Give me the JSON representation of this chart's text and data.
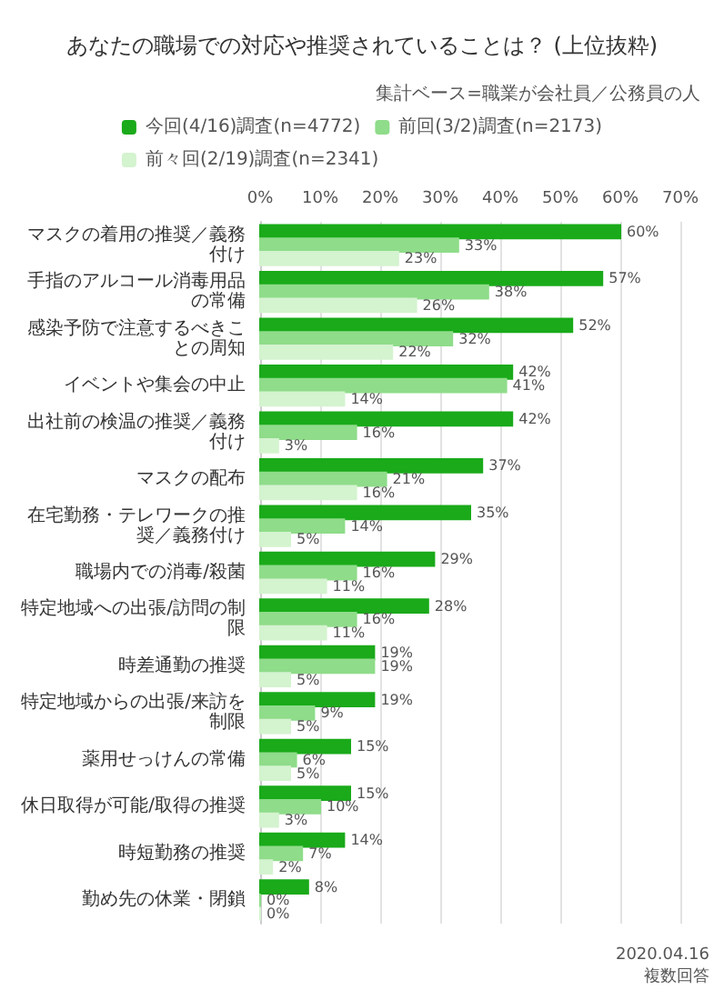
{
  "chart_data": {
    "type": "bar",
    "orientation": "horizontal",
    "title": "あなたの職場での対応や推奨されていることは？ (上位抜粋)",
    "subtitle": "集計ベース=職業が会社員／公務員の人",
    "categories": [
      "マスクの着用の推奨／義務付け",
      "手指のアルコール消毒用品の常備",
      "感染予防で注意するべきことの周知",
      "イベントや集会の中止",
      "出社前の検温の推奨／義務付け",
      "マスクの配布",
      "在宅勤務・テレワークの推奨／義務付け",
      "職場内での消毒/殺菌",
      "特定地域への出張/訪問の制限",
      "時差通勤の推奨",
      "特定地域からの出張/来訪を制限",
      "薬用せっけんの常備",
      "休日取得が可能/取得の推奨",
      "時短勤務の推奨",
      "勤め先の休業・閉鎖"
    ],
    "series": [
      {
        "name": "今回(4/16)調査(n=4772)",
        "color": "#1aaa1a",
        "values": [
          60,
          57,
          52,
          42,
          42,
          37,
          35,
          29,
          28,
          19,
          19,
          15,
          15,
          14,
          8
        ],
        "value_labels": [
          "60%",
          "57%",
          "52%",
          "42%",
          "42%",
          "37%",
          "35%",
          "29%",
          "28%",
          "19%",
          "19%",
          "15%",
          "15%",
          "14%",
          "8%"
        ]
      },
      {
        "name": "前回(3/2)調査(n=2173)",
        "color": "#8fdc8a",
        "values": [
          33,
          38,
          32,
          41,
          16,
          21,
          14,
          16,
          16,
          19,
          9,
          6,
          10,
          7,
          0
        ],
        "value_labels": [
          "33%",
          "38%",
          "32%",
          "41%",
          "16%",
          "21%",
          "14%",
          "16%",
          "16%",
          "19%",
          "9%",
          "6%",
          "10%",
          "7%",
          "0%"
        ]
      },
      {
        "name": "前々回(2/19)調査(n=2341)",
        "color": "#d4f3cf",
        "values": [
          23,
          26,
          22,
          14,
          3,
          16,
          5,
          11,
          11,
          5,
          5,
          5,
          3,
          2,
          0
        ],
        "value_labels": [
          "23%",
          "26%",
          "22%",
          "14%",
          "3%",
          "16%",
          "5%",
          "11%",
          "11%",
          "5%",
          "5%",
          "5%",
          "3%",
          "2%",
          "0%"
        ]
      }
    ],
    "xlim": [
      0,
      70
    ],
    "xticks": [
      {
        "value": 0,
        "label": "0%"
      },
      {
        "value": 10,
        "label": "10%"
      },
      {
        "value": 20,
        "label": "20%"
      },
      {
        "value": 30,
        "label": "30%"
      },
      {
        "value": 40,
        "label": "40%"
      },
      {
        "value": 50,
        "label": "50%"
      },
      {
        "value": 60,
        "label": "60%"
      },
      {
        "value": 70,
        "label": "70%"
      }
    ],
    "grid": "x",
    "legend": "top",
    "annotations": [
      "2020.04.16",
      "複数回答"
    ]
  }
}
